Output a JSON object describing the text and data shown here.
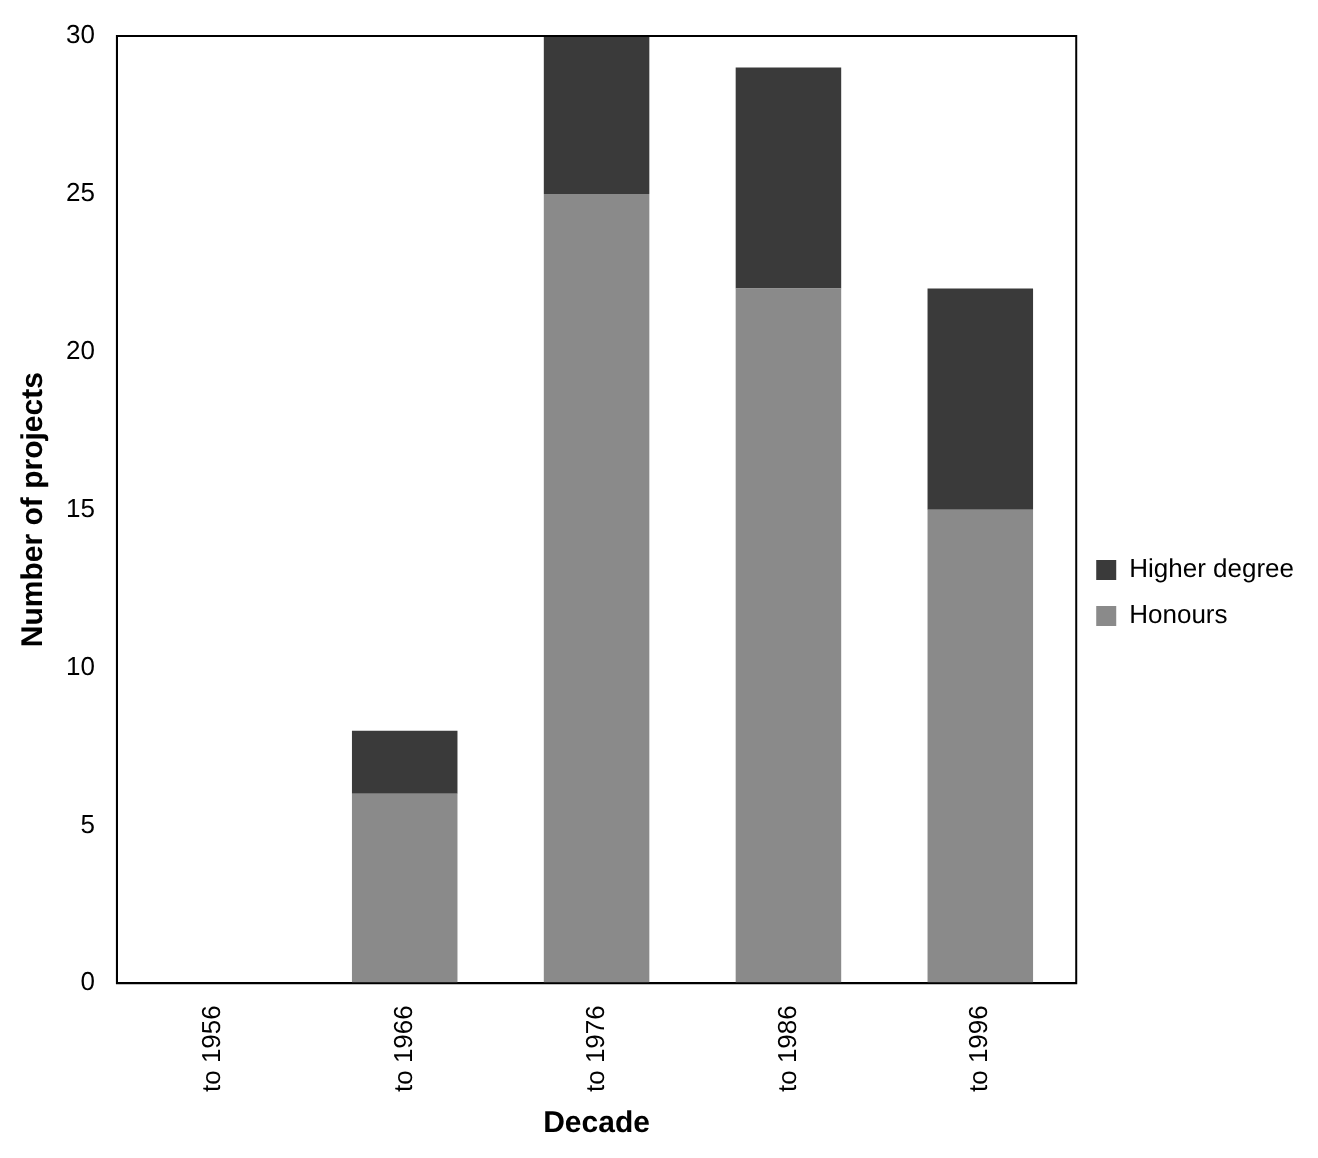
{
  "chart_data": {
    "type": "bar",
    "stacked": true,
    "xlabel": "Decade",
    "ylabel": "Number of projects",
    "categories": [
      "to 1956",
      "to 1966",
      "to 1976",
      "to 1986",
      "to 1996"
    ],
    "series": [
      {
        "name": "Honours",
        "color": "#8a8a8a",
        "values": [
          0,
          6,
          25,
          22,
          15
        ]
      },
      {
        "name": "Higher degree",
        "color": "#3a3a3a",
        "values": [
          0,
          2,
          5,
          7,
          7
        ]
      }
    ],
    "ylim": [
      0,
      30
    ],
    "yticks": [
      0,
      5,
      10,
      15,
      20,
      25,
      30
    ],
    "grid": false,
    "legend": "right"
  }
}
